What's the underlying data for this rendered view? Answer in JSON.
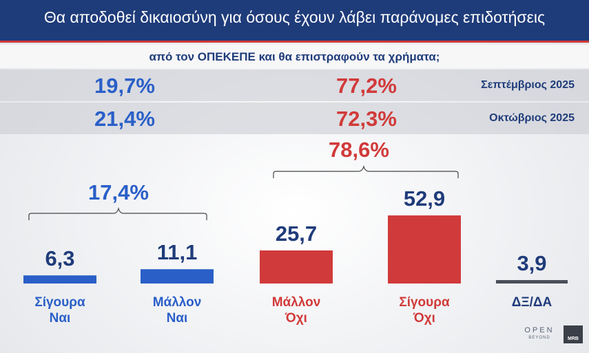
{
  "header": {
    "title": "Θα αποδοθεί δικαιοσύνη για όσους έχουν λάβει παράνομες επιδοτήσεις",
    "subtitle": "από τον ΟΠΕΚΕΠΕ και θα επιστραφούν τα χρήματα;"
  },
  "comparisons": [
    {
      "yes": "19,7%",
      "no": "77,2%",
      "label": "Σεπτέμβριος 2025"
    },
    {
      "yes": "21,4%",
      "no": "72,3%",
      "label": "Οκτώβριος 2025"
    }
  ],
  "group_totals": {
    "yes": "17,4%",
    "no": "78,6%"
  },
  "colors": {
    "yes": "#2a5fc8",
    "no": "#d13a3a",
    "dk": "#4a4f5a",
    "header": "#1f3c7a"
  },
  "chart_data": {
    "type": "bar",
    "categories": [
      "Σίγουρα Ναι",
      "Μάλλον Ναι",
      "Μάλλον Όχι",
      "Σίγουρα Όχι",
      "ΔΞ/ΔΑ"
    ],
    "category_lines": [
      [
        "Σίγουρα",
        "Ναι"
      ],
      [
        "Μάλλον",
        "Ναι"
      ],
      [
        "Μάλλον",
        "Όχι"
      ],
      [
        "Σίγουρα",
        "Όχι"
      ],
      [
        "ΔΞ/ΔΑ"
      ]
    ],
    "values": [
      6.3,
      11.1,
      25.7,
      52.9,
      3.9
    ],
    "value_labels": [
      "6,3",
      "11,1",
      "25,7",
      "52,9",
      "3,9"
    ],
    "colors": [
      "#2a5fc8",
      "#2a5fc8",
      "#d13a3a",
      "#d13a3a",
      "#4a4f5a"
    ],
    "title": "",
    "xlabel": "",
    "ylabel": "",
    "grid": false
  },
  "logos": {
    "open": "OPEN",
    "open_sub": "BEYOND",
    "mrb": "MRB"
  }
}
